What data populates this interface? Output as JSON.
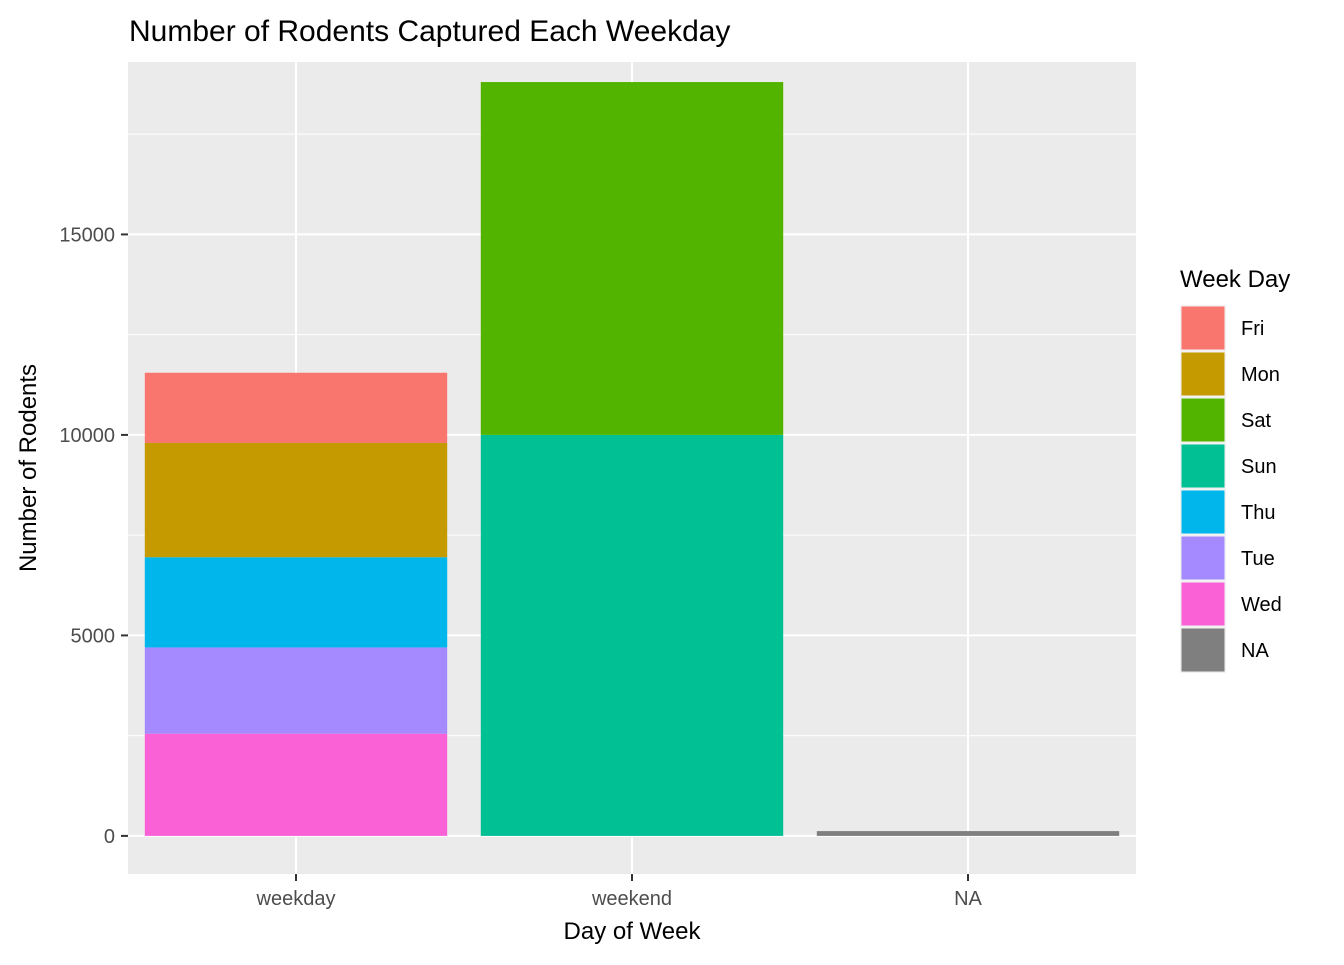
{
  "chart_data": {
    "type": "bar",
    "stacked": true,
    "title": "Number of Rodents Captured Each Weekday",
    "xlabel": "Day of Week",
    "ylabel": "Number of Rodents",
    "categories": [
      "weekday",
      "weekend",
      "NA"
    ],
    "ylim": [
      -950,
      19300
    ],
    "yticks": [
      0,
      5000,
      10000,
      15000
    ],
    "grid": true,
    "legend": {
      "title": "Week Day",
      "position": "right"
    },
    "series": [
      {
        "name": "Fri",
        "color": "#F8766D",
        "values": [
          1750,
          0,
          0
        ]
      },
      {
        "name": "Mon",
        "color": "#C49A00",
        "values": [
          2850,
          0,
          0
        ]
      },
      {
        "name": "Sat",
        "color": "#53B400",
        "values": [
          0,
          8800,
          0
        ]
      },
      {
        "name": "Sun",
        "color": "#00C094",
        "values": [
          0,
          10000,
          0
        ]
      },
      {
        "name": "Thu",
        "color": "#00B6EB",
        "values": [
          2250,
          0,
          0
        ]
      },
      {
        "name": "Tue",
        "color": "#A58AFF",
        "values": [
          2150,
          0,
          0
        ]
      },
      {
        "name": "Wed",
        "color": "#FB61D7",
        "values": [
          2550,
          0,
          0
        ]
      },
      {
        "name": "NA",
        "color": "#7F7F7F",
        "values": [
          0,
          0,
          120
        ]
      }
    ]
  }
}
